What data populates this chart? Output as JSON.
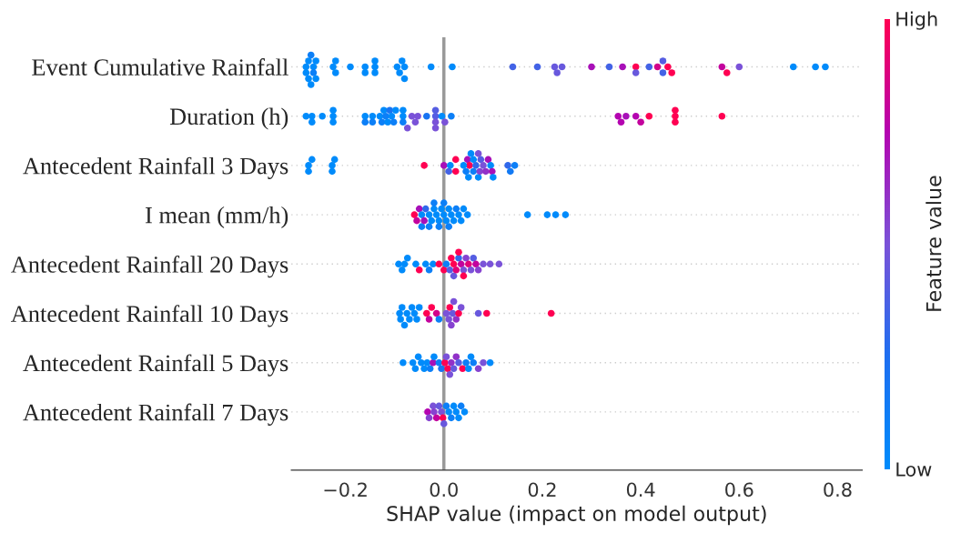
{
  "chart_data": {
    "type": "scatter",
    "orientation": "horizontal",
    "xlabel": "SHAP value (impact on model output)",
    "clabel": "Feature value",
    "categories": [
      "Event Cumulative Rainfall",
      "Duration (h)",
      "Antecedent Rainfall 3 Days",
      "I mean (mm/h)",
      "Antecedent Rainfall 20 Days",
      "Antecedent Rainfall 10 Days",
      "Antecedent Rainfall 5 Days",
      "Antecedent Rainfall 7 Days"
    ],
    "xlim": [
      -0.31,
      0.85
    ],
    "xticks": [
      {
        "value": -0.2,
        "label": "−0.2"
      },
      {
        "value": 0.0,
        "label": "0.0"
      },
      {
        "value": 0.2,
        "label": "0.2"
      },
      {
        "value": 0.4,
        "label": "0.4"
      },
      {
        "value": 0.6,
        "label": "0.6"
      },
      {
        "value": 0.8,
        "label": "0.8"
      }
    ],
    "clim": [
      0,
      1
    ],
    "cticks": [
      {
        "value": 0,
        "label": "Low"
      },
      {
        "value": 1,
        "label": "High"
      }
    ],
    "grid": "y",
    "ref_lines": [
      {
        "axis": "x",
        "value": 0,
        "color": "#999999"
      }
    ],
    "series": [
      {
        "x": [
          "Event Cumulative Rainfall",
          "Event Cumulative Rainfall",
          "Event Cumulative Rainfall",
          "Event Cumulative Rainfall",
          "Event Cumulative Rainfall",
          "Event Cumulative Rainfall",
          "Event Cumulative Rainfall",
          "Event Cumulative Rainfall",
          "Event Cumulative Rainfall",
          "Event Cumulative Rainfall",
          "Event Cumulative Rainfall",
          "Event Cumulative Rainfall",
          "Event Cumulative Rainfall",
          "Event Cumulative Rainfall",
          "Event Cumulative Rainfall",
          "Event Cumulative Rainfall",
          "Event Cumulative Rainfall",
          "Event Cumulative Rainfall",
          "Event Cumulative Rainfall",
          "Event Cumulative Rainfall",
          "Event Cumulative Rainfall",
          "Event Cumulative Rainfall",
          "Event Cumulative Rainfall",
          "Event Cumulative Rainfall",
          "Event Cumulative Rainfall",
          "Event Cumulative Rainfall",
          "Event Cumulative Rainfall",
          "Event Cumulative Rainfall",
          "Event Cumulative Rainfall",
          "Event Cumulative Rainfall",
          "Event Cumulative Rainfall",
          "Event Cumulative Rainfall",
          "Event Cumulative Rainfall",
          "Event Cumulative Rainfall",
          "Event Cumulative Rainfall",
          "Event Cumulative Rainfall",
          "Event Cumulative Rainfall",
          "Event Cumulative Rainfall",
          "Event Cumulative Rainfall",
          "Event Cumulative Rainfall",
          "Event Cumulative Rainfall",
          "Event Cumulative Rainfall",
          "Event Cumulative Rainfall",
          "Event Cumulative Rainfall",
          "Event Cumulative Rainfall",
          "Event Cumulative Rainfall",
          "Event Cumulative Rainfall",
          "Event Cumulative Rainfall"
        ],
        "values": [
          -0.28,
          -0.28,
          -0.275,
          -0.275,
          -0.27,
          -0.27,
          -0.265,
          -0.265,
          -0.26,
          -0.26,
          -0.225,
          -0.22,
          -0.22,
          -0.19,
          -0.16,
          -0.16,
          -0.14,
          -0.14,
          -0.14,
          -0.095,
          -0.09,
          -0.085,
          -0.08,
          -0.08,
          -0.026,
          0.017,
          0.14,
          0.19,
          0.225,
          0.23,
          0.24,
          0.3,
          0.336,
          0.363,
          0.39,
          0.39,
          0.417,
          0.434,
          0.445,
          0.445,
          0.455,
          0.463,
          0.565,
          0.575,
          0.6,
          0.71,
          0.755,
          0.775
        ],
        "colors": [
          "#008bfb",
          "#008bfb",
          "#008bfb",
          "#008bfb",
          "#0c7ff7",
          "#008bfb",
          "#008bfb",
          "#0c7ff7",
          "#008bfb",
          "#008bfb",
          "#008bfb",
          "#008bfb",
          "#008bfb",
          "#008bfb",
          "#008bfb",
          "#008bfb",
          "#008bfb",
          "#008bfb",
          "#008bfb",
          "#008bfb",
          "#008bfb",
          "#008bfb",
          "#008bfb",
          "#008bfb",
          "#008bfb",
          "#008bfb",
          "#4363e6",
          "#4363e6",
          "#6858dd",
          "#6858dd",
          "#6858dd",
          "#a810b8",
          "#4363e6",
          "#a810b8",
          "#ff0052",
          "#6858dd",
          "#4363e6",
          "#d2028a",
          "#4363e6",
          "#555de2",
          "#ff0052",
          "#ff0052",
          "#c3039d",
          "#ff0052",
          "#7a52d8",
          "#008bfb",
          "#008bfb",
          "#008bfb"
        ]
      },
      {
        "x": [
          "Duration (h)",
          "Duration (h)",
          "Duration (h)",
          "Duration (h)",
          "Duration (h)",
          "Duration (h)",
          "Duration (h)",
          "Duration (h)",
          "Duration (h)",
          "Duration (h)",
          "Duration (h)",
          "Duration (h)",
          "Duration (h)",
          "Duration (h)",
          "Duration (h)",
          "Duration (h)",
          "Duration (h)",
          "Duration (h)",
          "Duration (h)",
          "Duration (h)",
          "Duration (h)",
          "Duration (h)",
          "Duration (h)",
          "Duration (h)",
          "Duration (h)",
          "Duration (h)",
          "Duration (h)",
          "Duration (h)",
          "Duration (h)",
          "Duration (h)",
          "Duration (h)",
          "Duration (h)",
          "Duration (h)",
          "Duration (h)",
          "Duration (h)",
          "Duration (h)",
          "Duration (h)",
          "Duration (h)",
          "Duration (h)",
          "Duration (h)",
          "Duration (h)",
          "Duration (h)",
          "Duration (h)",
          "Duration (h)",
          "Duration (h)"
        ],
        "values": [
          -0.28,
          -0.268,
          -0.268,
          -0.247,
          -0.225,
          -0.225,
          -0.225,
          -0.16,
          -0.16,
          -0.145,
          -0.145,
          -0.13,
          -0.126,
          -0.122,
          -0.118,
          -0.114,
          -0.11,
          -0.106,
          -0.102,
          -0.098,
          -0.083,
          -0.083,
          -0.083,
          -0.074,
          -0.065,
          -0.058,
          -0.053,
          -0.035,
          -0.017,
          -0.017,
          -0.017,
          -0.017,
          -0.004,
          0.002,
          0.015,
          0.354,
          0.36,
          0.37,
          0.39,
          0.4,
          0.417,
          0.47,
          0.47,
          0.47,
          0.565
        ],
        "colors": [
          "#008bfb",
          "#008bfb",
          "#008bfb",
          "#008bfb",
          "#008bfb",
          "#008bfb",
          "#008bfb",
          "#008bfb",
          "#0c7ff7",
          "#008bfb",
          "#0c7ff7",
          "#008bfb",
          "#0c7ff7",
          "#008bfb",
          "#0c7ff7",
          "#008bfb",
          "#1874f2",
          "#008bfb",
          "#0c7ff7",
          "#008bfb",
          "#008bfb",
          "#0c7ff7",
          "#008bfb",
          "#7a52d8",
          "#7a52d8",
          "#7a52d8",
          "#7a52d8",
          "#1874f2",
          "#555de2",
          "#7a52d8",
          "#555de2",
          "#7a52d8",
          "#008bfb",
          "#7a52d8",
          "#0c7ff7",
          "#b404b0",
          "#b404b0",
          "#a810b8",
          "#b404b0",
          "#c3039d",
          "#ff0052",
          "#ff0052",
          "#ff0052",
          "#ff0052",
          "#ff0052"
        ]
      },
      {
        "x": [
          "Antecedent Rainfall 3 Days",
          "Antecedent Rainfall 3 Days",
          "Antecedent Rainfall 3 Days",
          "Antecedent Rainfall 3 Days",
          "Antecedent Rainfall 3 Days",
          "Antecedent Rainfall 3 Days",
          "Antecedent Rainfall 3 Days",
          "Antecedent Rainfall 3 Days",
          "Antecedent Rainfall 3 Days",
          "Antecedent Rainfall 3 Days",
          "Antecedent Rainfall 3 Days",
          "Antecedent Rainfall 3 Days",
          "Antecedent Rainfall 3 Days",
          "Antecedent Rainfall 3 Days",
          "Antecedent Rainfall 3 Days",
          "Antecedent Rainfall 3 Days",
          "Antecedent Rainfall 3 Days",
          "Antecedent Rainfall 3 Days",
          "Antecedent Rainfall 3 Days",
          "Antecedent Rainfall 3 Days",
          "Antecedent Rainfall 3 Days",
          "Antecedent Rainfall 3 Days",
          "Antecedent Rainfall 3 Days",
          "Antecedent Rainfall 3 Days",
          "Antecedent Rainfall 3 Days",
          "Antecedent Rainfall 3 Days",
          "Antecedent Rainfall 3 Days",
          "Antecedent Rainfall 3 Days",
          "Antecedent Rainfall 3 Days",
          "Antecedent Rainfall 3 Days",
          "Antecedent Rainfall 3 Days",
          "Antecedent Rainfall 3 Days",
          "Antecedent Rainfall 3 Days",
          "Antecedent Rainfall 3 Days"
        ],
        "values": [
          -0.275,
          -0.275,
          -0.268,
          -0.227,
          -0.227,
          -0.222,
          -0.04,
          0.0,
          0.01,
          0.013,
          0.024,
          0.024,
          0.048,
          0.052,
          0.04,
          0.045,
          0.05,
          0.055,
          0.06,
          0.06,
          0.065,
          0.07,
          0.07,
          0.073,
          0.075,
          0.08,
          0.085,
          0.09,
          0.095,
          0.098,
          0.1,
          0.13,
          0.135,
          0.144
        ],
        "colors": [
          "#008bfb",
          "#008bfb",
          "#008bfb",
          "#008bfb",
          "#008bfb",
          "#008bfb",
          "#ff0052",
          "#a810b8",
          "#4363e6",
          "#008bfb",
          "#ff0052",
          "#ff0052",
          "#a810b8",
          "#ff0052",
          "#008bfb",
          "#0c7ff7",
          "#008bfb",
          "#008bfb",
          "#0c7ff7",
          "#008bfb",
          "#3068eb",
          "#008bfb",
          "#7a52d8",
          "#8642d0",
          "#555de2",
          "#7a52d8",
          "#9131c8",
          "#a810b8",
          "#008bfb",
          "#a810b8",
          "#008bfb",
          "#3068eb",
          "#127af4",
          "#0c7ff7"
        ]
      },
      {
        "x": [
          "I mean (mm/h)",
          "I mean (mm/h)",
          "I mean (mm/h)",
          "I mean (mm/h)",
          "I mean (mm/h)",
          "I mean (mm/h)",
          "I mean (mm/h)",
          "I mean (mm/h)",
          "I mean (mm/h)",
          "I mean (mm/h)",
          "I mean (mm/h)",
          "I mean (mm/h)",
          "I mean (mm/h)",
          "I mean (mm/h)",
          "I mean (mm/h)",
          "I mean (mm/h)",
          "I mean (mm/h)",
          "I mean (mm/h)",
          "I mean (mm/h)",
          "I mean (mm/h)",
          "I mean (mm/h)",
          "I mean (mm/h)",
          "I mean (mm/h)",
          "I mean (mm/h)",
          "I mean (mm/h)",
          "I mean (mm/h)",
          "I mean (mm/h)",
          "I mean (mm/h)",
          "I mean (mm/h)",
          "I mean (mm/h)",
          "I mean (mm/h)",
          "I mean (mm/h)"
        ],
        "values": [
          -0.06,
          -0.055,
          -0.05,
          -0.045,
          -0.045,
          -0.04,
          -0.037,
          -0.03,
          -0.03,
          -0.025,
          -0.02,
          -0.02,
          -0.015,
          -0.01,
          -0.01,
          -0.005,
          0.0,
          0.0,
          0.005,
          0.01,
          0.01,
          0.015,
          0.02,
          0.025,
          0.03,
          0.035,
          0.04,
          0.048,
          0.17,
          0.21,
          0.227,
          0.247
        ],
        "colors": [
          "#ff0052",
          "#c3039d",
          "#a810b8",
          "#008bfb",
          "#0c7ff7",
          "#a810b8",
          "#3068eb",
          "#008bfb",
          "#0c7ff7",
          "#008bfb",
          "#008bfb",
          "#0c7ff7",
          "#008bfb",
          "#008bfb",
          "#0c7ff7",
          "#008bfb",
          "#008bfb",
          "#0c7ff7",
          "#008bfb",
          "#008bfb",
          "#0c7ff7",
          "#008bfb",
          "#008bfb",
          "#0c7ff7",
          "#008bfb",
          "#008bfb",
          "#008bfb",
          "#008bfb",
          "#008bfb",
          "#008bfb",
          "#008bfb",
          "#008bfb"
        ]
      },
      {
        "x": [
          "Antecedent Rainfall 20 Days",
          "Antecedent Rainfall 20 Days",
          "Antecedent Rainfall 20 Days",
          "Antecedent Rainfall 20 Days",
          "Antecedent Rainfall 20 Days",
          "Antecedent Rainfall 20 Days",
          "Antecedent Rainfall 20 Days",
          "Antecedent Rainfall 20 Days",
          "Antecedent Rainfall 20 Days",
          "Antecedent Rainfall 20 Days",
          "Antecedent Rainfall 20 Days",
          "Antecedent Rainfall 20 Days",
          "Antecedent Rainfall 20 Days",
          "Antecedent Rainfall 20 Days",
          "Antecedent Rainfall 20 Days",
          "Antecedent Rainfall 20 Days",
          "Antecedent Rainfall 20 Days",
          "Antecedent Rainfall 20 Days",
          "Antecedent Rainfall 20 Days",
          "Antecedent Rainfall 20 Days",
          "Antecedent Rainfall 20 Days",
          "Antecedent Rainfall 20 Days",
          "Antecedent Rainfall 20 Days",
          "Antecedent Rainfall 20 Days",
          "Antecedent Rainfall 20 Days",
          "Antecedent Rainfall 20 Days",
          "Antecedent Rainfall 20 Days",
          "Antecedent Rainfall 20 Days",
          "Antecedent Rainfall 20 Days",
          "Antecedent Rainfall 20 Days",
          "Antecedent Rainfall 20 Days"
        ],
        "values": [
          -0.092,
          -0.085,
          -0.08,
          -0.074,
          -0.057,
          -0.05,
          -0.037,
          -0.03,
          -0.022,
          -0.01,
          0.0,
          0.005,
          0.012,
          0.015,
          0.02,
          0.02,
          0.025,
          0.03,
          0.03,
          0.035,
          0.04,
          0.04,
          0.045,
          0.05,
          0.055,
          0.06,
          0.065,
          0.07,
          0.08,
          0.094,
          0.112
        ],
        "colors": [
          "#008bfb",
          "#008bfb",
          "#008bfb",
          "#008bfb",
          "#008bfb",
          "#ff0052",
          "#008bfb",
          "#0c7ff7",
          "#008bfb",
          "#ff0052",
          "#ff0052",
          "#0c7ff7",
          "#555de2",
          "#ff0052",
          "#ff0052",
          "#6858dd",
          "#e10278",
          "#3068eb",
          "#ff0052",
          "#c3039d",
          "#7a52d8",
          "#ff0052",
          "#8642d0",
          "#e10278",
          "#7a52d8",
          "#555de2",
          "#c3039d",
          "#8642d0",
          "#7a52d8",
          "#7a52d8",
          "#7a52d8"
        ]
      },
      {
        "x": [
          "Antecedent Rainfall 10 Days",
          "Antecedent Rainfall 10 Days",
          "Antecedent Rainfall 10 Days",
          "Antecedent Rainfall 10 Days",
          "Antecedent Rainfall 10 Days",
          "Antecedent Rainfall 10 Days",
          "Antecedent Rainfall 10 Days",
          "Antecedent Rainfall 10 Days",
          "Antecedent Rainfall 10 Days",
          "Antecedent Rainfall 10 Days",
          "Antecedent Rainfall 10 Days",
          "Antecedent Rainfall 10 Days",
          "Antecedent Rainfall 10 Days",
          "Antecedent Rainfall 10 Days",
          "Antecedent Rainfall 10 Days",
          "Antecedent Rainfall 10 Days",
          "Antecedent Rainfall 10 Days",
          "Antecedent Rainfall 10 Days",
          "Antecedent Rainfall 10 Days",
          "Antecedent Rainfall 10 Days",
          "Antecedent Rainfall 10 Days",
          "Antecedent Rainfall 10 Days",
          "Antecedent Rainfall 10 Days",
          "Antecedent Rainfall 10 Days",
          "Antecedent Rainfall 10 Days",
          "Antecedent Rainfall 10 Days",
          "Antecedent Rainfall 10 Days"
        ],
        "values": [
          -0.09,
          -0.088,
          -0.085,
          -0.08,
          -0.075,
          -0.07,
          -0.065,
          -0.06,
          -0.055,
          -0.05,
          -0.035,
          -0.03,
          -0.025,
          -0.015,
          -0.01,
          0.005,
          0.01,
          0.012,
          0.015,
          0.018,
          0.02,
          0.025,
          0.03,
          0.035,
          0.07,
          0.087,
          0.218
        ],
        "colors": [
          "#008bfb",
          "#008bfb",
          "#008bfb",
          "#008bfb",
          "#008bfb",
          "#008bfb",
          "#008bfb",
          "#008bfb",
          "#008bfb",
          "#008bfb",
          "#ff0052",
          "#c3039d",
          "#ff0052",
          "#d2028a",
          "#0c7ff7",
          "#7a52d8",
          "#7a52d8",
          "#ff0052",
          "#8642d0",
          "#6858dd",
          "#7a52d8",
          "#9131c8",
          "#ff0052",
          "#7a52d8",
          "#6858dd",
          "#ff0052",
          "#ff0052"
        ]
      },
      {
        "x": [
          "Antecedent Rainfall 5 Days",
          "Antecedent Rainfall 5 Days",
          "Antecedent Rainfall 5 Days",
          "Antecedent Rainfall 5 Days",
          "Antecedent Rainfall 5 Days",
          "Antecedent Rainfall 5 Days",
          "Antecedent Rainfall 5 Days",
          "Antecedent Rainfall 5 Days",
          "Antecedent Rainfall 5 Days",
          "Antecedent Rainfall 5 Days",
          "Antecedent Rainfall 5 Days",
          "Antecedent Rainfall 5 Days",
          "Antecedent Rainfall 5 Days",
          "Antecedent Rainfall 5 Days",
          "Antecedent Rainfall 5 Days",
          "Antecedent Rainfall 5 Days",
          "Antecedent Rainfall 5 Days",
          "Antecedent Rainfall 5 Days",
          "Antecedent Rainfall 5 Days",
          "Antecedent Rainfall 5 Days",
          "Antecedent Rainfall 5 Days",
          "Antecedent Rainfall 5 Days",
          "Antecedent Rainfall 5 Days",
          "Antecedent Rainfall 5 Days",
          "Antecedent Rainfall 5 Days",
          "Antecedent Rainfall 5 Days",
          "Antecedent Rainfall 5 Days",
          "Antecedent Rainfall 5 Days"
        ],
        "values": [
          -0.083,
          -0.063,
          -0.058,
          -0.052,
          -0.046,
          -0.04,
          -0.034,
          -0.028,
          -0.022,
          -0.02,
          -0.01,
          -0.005,
          0.002,
          0.005,
          0.008,
          0.012,
          0.015,
          0.02,
          0.025,
          0.03,
          0.038,
          0.045,
          0.05,
          0.055,
          0.06,
          0.07,
          0.08,
          0.094
        ],
        "colors": [
          "#008bfb",
          "#008bfb",
          "#008bfb",
          "#008bfb",
          "#008bfb",
          "#008bfb",
          "#008bfb",
          "#0c7ff7",
          "#a810b8",
          "#008bfb",
          "#0c7ff7",
          "#1874f2",
          "#ff0052",
          "#7a52d8",
          "#ff0052",
          "#7a52d8",
          "#9131c8",
          "#6858dd",
          "#9131c8",
          "#555de2",
          "#ff0052",
          "#0c7ff7",
          "#008bfb",
          "#008bfb",
          "#0c7ff7",
          "#8642d0",
          "#7a52d8",
          "#008bfb"
        ]
      },
      {
        "x": [
          "Antecedent Rainfall 7 Days",
          "Antecedent Rainfall 7 Days",
          "Antecedent Rainfall 7 Days",
          "Antecedent Rainfall 7 Days",
          "Antecedent Rainfall 7 Days",
          "Antecedent Rainfall 7 Days",
          "Antecedent Rainfall 7 Days",
          "Antecedent Rainfall 7 Days",
          "Antecedent Rainfall 7 Days",
          "Antecedent Rainfall 7 Days",
          "Antecedent Rainfall 7 Days",
          "Antecedent Rainfall 7 Days",
          "Antecedent Rainfall 7 Days",
          "Antecedent Rainfall 7 Days",
          "Antecedent Rainfall 7 Days",
          "Antecedent Rainfall 7 Days",
          "Antecedent Rainfall 7 Days"
        ],
        "values": [
          -0.033,
          -0.03,
          -0.022,
          -0.02,
          -0.015,
          -0.01,
          -0.005,
          -0.002,
          0.0,
          0.005,
          0.01,
          0.015,
          0.02,
          0.025,
          0.03,
          0.035,
          0.042
        ],
        "colors": [
          "#b404b0",
          "#8642d0",
          "#7a52d8",
          "#8642d0",
          "#c3039d",
          "#6858dd",
          "#7a52d8",
          "#ff0052",
          "#6858dd",
          "#0c7ff7",
          "#008bfb",
          "#0c7ff7",
          "#008bfb",
          "#008bfb",
          "#008bfb",
          "#0c7ff7",
          "#008bfb"
        ]
      }
    ]
  }
}
